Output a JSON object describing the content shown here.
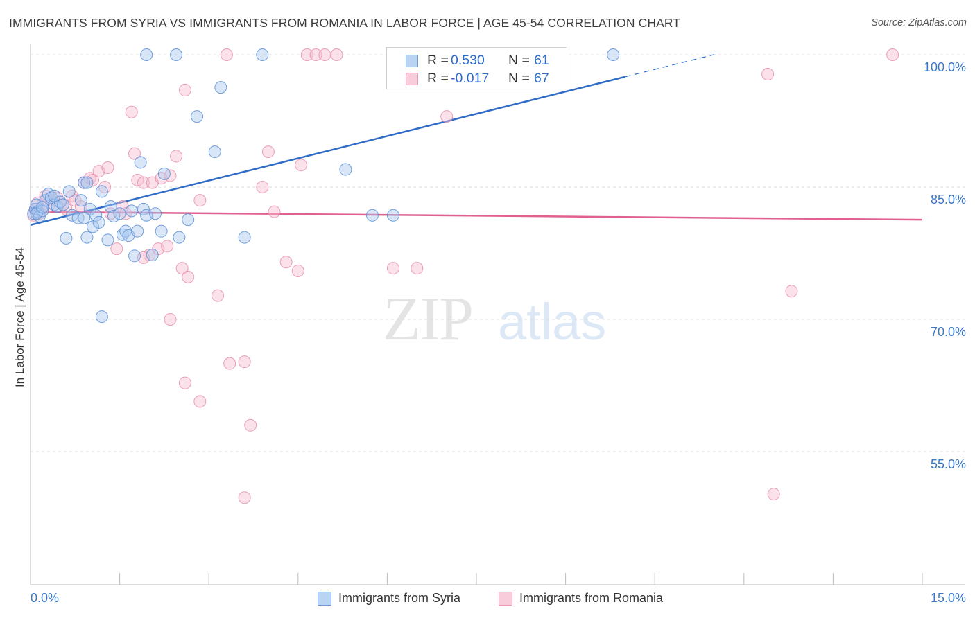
{
  "header": {
    "title": "IMMIGRANTS FROM SYRIA VS IMMIGRANTS FROM ROMANIA IN LABOR FORCE | AGE 45-54 CORRELATION CHART",
    "source": "Source: ZipAtlas.com"
  },
  "watermark": {
    "zip": "ZIP",
    "atlas": "atlas"
  },
  "legend": {
    "syria": {
      "r_label": "R =",
      "r_value": "0.530",
      "n_label": "N =",
      "n_value": "61",
      "name": "Immigrants from Syria"
    },
    "romania": {
      "r_label": "R =",
      "r_value": "-0.017",
      "n_label": "N =",
      "n_value": "67",
      "name": "Immigrants from Romania"
    }
  },
  "colors": {
    "syria_fill": "#a9c8f0",
    "syria_stroke": "#5b8fd6",
    "syria_line": "#2f6cc8",
    "romania_fill": "#f7bfd0",
    "romania_stroke": "#e58aa8",
    "romania_line": "#e06090",
    "grid": "#dcdcdc",
    "tick_label": "#3a78c9"
  },
  "chart_data": {
    "type": "scatter",
    "title": "IMMIGRANTS FROM SYRIA VS IMMIGRANTS FROM ROMANIA IN LABOR FORCE | AGE 45-54 CORRELATION CHART",
    "xlabel": "",
    "ylabel": "In Labor Force | Age 45-54",
    "xlim": [
      0,
      15
    ],
    "ylim": [
      40.5,
      101.5
    ],
    "x_tick_labels": [
      "0.0%",
      "15.0%"
    ],
    "y_ticks": [
      55,
      70,
      85,
      100
    ],
    "y_tick_labels": [
      "55.0%",
      "70.0%",
      "85.0%",
      "100.0%"
    ],
    "grid": true,
    "legend_position": "top-center",
    "series": [
      {
        "name": "Immigrants from Syria",
        "R": 0.53,
        "N": 61,
        "trend": {
          "x0": 0.0,
          "y0": 80.7,
          "x1": 10.0,
          "y1": 97.5,
          "dashed_to_x": 11.5
        },
        "points": [
          [
            0.05,
            82.0
          ],
          [
            0.08,
            82.5
          ],
          [
            0.1,
            83.0
          ],
          [
            0.12,
            82.2
          ],
          [
            0.15,
            81.7
          ],
          [
            0.2,
            82.3
          ],
          [
            0.25,
            83.5
          ],
          [
            0.3,
            84.2
          ],
          [
            0.35,
            83.8
          ],
          [
            0.4,
            83.0
          ],
          [
            0.45,
            82.8
          ],
          [
            0.5,
            83.3
          ],
          [
            0.55,
            83.0
          ],
          [
            0.6,
            79.2
          ],
          [
            0.65,
            84.5
          ],
          [
            0.7,
            81.8
          ],
          [
            0.8,
            81.5
          ],
          [
            0.85,
            83.5
          ],
          [
            0.9,
            85.5
          ],
          [
            0.95,
            79.3
          ],
          [
            1.0,
            82.5
          ],
          [
            1.05,
            80.5
          ],
          [
            1.1,
            81.8
          ],
          [
            1.15,
            81.0
          ],
          [
            1.2,
            84.5
          ],
          [
            1.3,
            79.0
          ],
          [
            1.35,
            82.8
          ],
          [
            1.4,
            81.7
          ],
          [
            1.5,
            82.0
          ],
          [
            1.55,
            79.6
          ],
          [
            1.6,
            80.0
          ],
          [
            1.65,
            79.5
          ],
          [
            1.7,
            82.3
          ],
          [
            1.75,
            77.2
          ],
          [
            1.8,
            80.0
          ],
          [
            1.85,
            87.8
          ],
          [
            1.9,
            82.5
          ],
          [
            1.95,
            81.8
          ],
          [
            2.05,
            77.3
          ],
          [
            2.1,
            82.0
          ],
          [
            2.2,
            80.0
          ],
          [
            2.25,
            86.5
          ],
          [
            2.5,
            79.3
          ],
          [
            2.65,
            81.3
          ],
          [
            2.8,
            93.0
          ],
          [
            3.1,
            89.0
          ],
          [
            3.6,
            79.3
          ],
          [
            5.3,
            87.0
          ],
          [
            5.75,
            81.8
          ],
          [
            6.1,
            81.8
          ],
          [
            0.95,
            85.5
          ],
          [
            0.1,
            82.0
          ],
          [
            0.2,
            82.7
          ],
          [
            0.9,
            81.5
          ],
          [
            1.2,
            70.3
          ],
          [
            1.95,
            100.0
          ],
          [
            2.45,
            100.0
          ],
          [
            3.9,
            100.0
          ],
          [
            9.8,
            100.0
          ],
          [
            3.2,
            96.3
          ],
          [
            0.4,
            84.0
          ]
        ]
      },
      {
        "name": "Immigrants from Romania",
        "R": -0.017,
        "N": 67,
        "trend": {
          "x0": 0.0,
          "y0": 82.2,
          "x1": 15.0,
          "y1": 81.3
        },
        "points": [
          [
            0.05,
            81.8
          ],
          [
            0.08,
            82.5
          ],
          [
            0.12,
            83.2
          ],
          [
            0.15,
            82.0
          ],
          [
            0.2,
            83.0
          ],
          [
            0.25,
            84.0
          ],
          [
            0.3,
            82.8
          ],
          [
            0.35,
            83.5
          ],
          [
            0.45,
            83.8
          ],
          [
            0.55,
            83.0
          ],
          [
            0.6,
            82.5
          ],
          [
            0.7,
            84.0
          ],
          [
            0.75,
            83.5
          ],
          [
            0.85,
            82.8
          ],
          [
            0.9,
            85.5
          ],
          [
            1.0,
            86.0
          ],
          [
            1.05,
            85.8
          ],
          [
            1.15,
            86.8
          ],
          [
            1.25,
            85.0
          ],
          [
            1.3,
            87.2
          ],
          [
            1.35,
            82.0
          ],
          [
            1.45,
            78.0
          ],
          [
            1.55,
            82.8
          ],
          [
            1.6,
            82.0
          ],
          [
            1.7,
            93.5
          ],
          [
            1.75,
            88.8
          ],
          [
            1.8,
            85.8
          ],
          [
            1.9,
            85.5
          ],
          [
            2.0,
            77.3
          ],
          [
            2.05,
            85.5
          ],
          [
            2.15,
            78.0
          ],
          [
            2.2,
            86.0
          ],
          [
            2.3,
            78.3
          ],
          [
            2.35,
            86.3
          ],
          [
            2.45,
            88.5
          ],
          [
            2.55,
            75.8
          ],
          [
            2.6,
            96.0
          ],
          [
            2.65,
            74.8
          ],
          [
            2.85,
            83.5
          ],
          [
            3.15,
            72.7
          ],
          [
            3.3,
            100.0
          ],
          [
            3.35,
            65.0
          ],
          [
            3.6,
            65.2
          ],
          [
            3.9,
            85.0
          ],
          [
            4.0,
            89.0
          ],
          [
            4.1,
            82.2
          ],
          [
            4.3,
            76.5
          ],
          [
            4.5,
            75.5
          ],
          [
            4.55,
            87.5
          ],
          [
            4.65,
            100.0
          ],
          [
            4.8,
            100.0
          ],
          [
            4.95,
            100.0
          ],
          [
            5.15,
            100.0
          ],
          [
            2.35,
            70.0
          ],
          [
            2.85,
            60.7
          ],
          [
            2.6,
            62.8
          ],
          [
            3.7,
            58.0
          ],
          [
            3.6,
            49.8
          ],
          [
            6.1,
            75.8
          ],
          [
            6.5,
            75.8
          ],
          [
            7.0,
            93.0
          ],
          [
            12.4,
            97.8
          ],
          [
            12.8,
            73.2
          ],
          [
            12.5,
            50.2
          ],
          [
            14.5,
            100.0
          ],
          [
            1.9,
            77.0
          ],
          [
            0.5,
            83.3
          ]
        ]
      }
    ]
  }
}
